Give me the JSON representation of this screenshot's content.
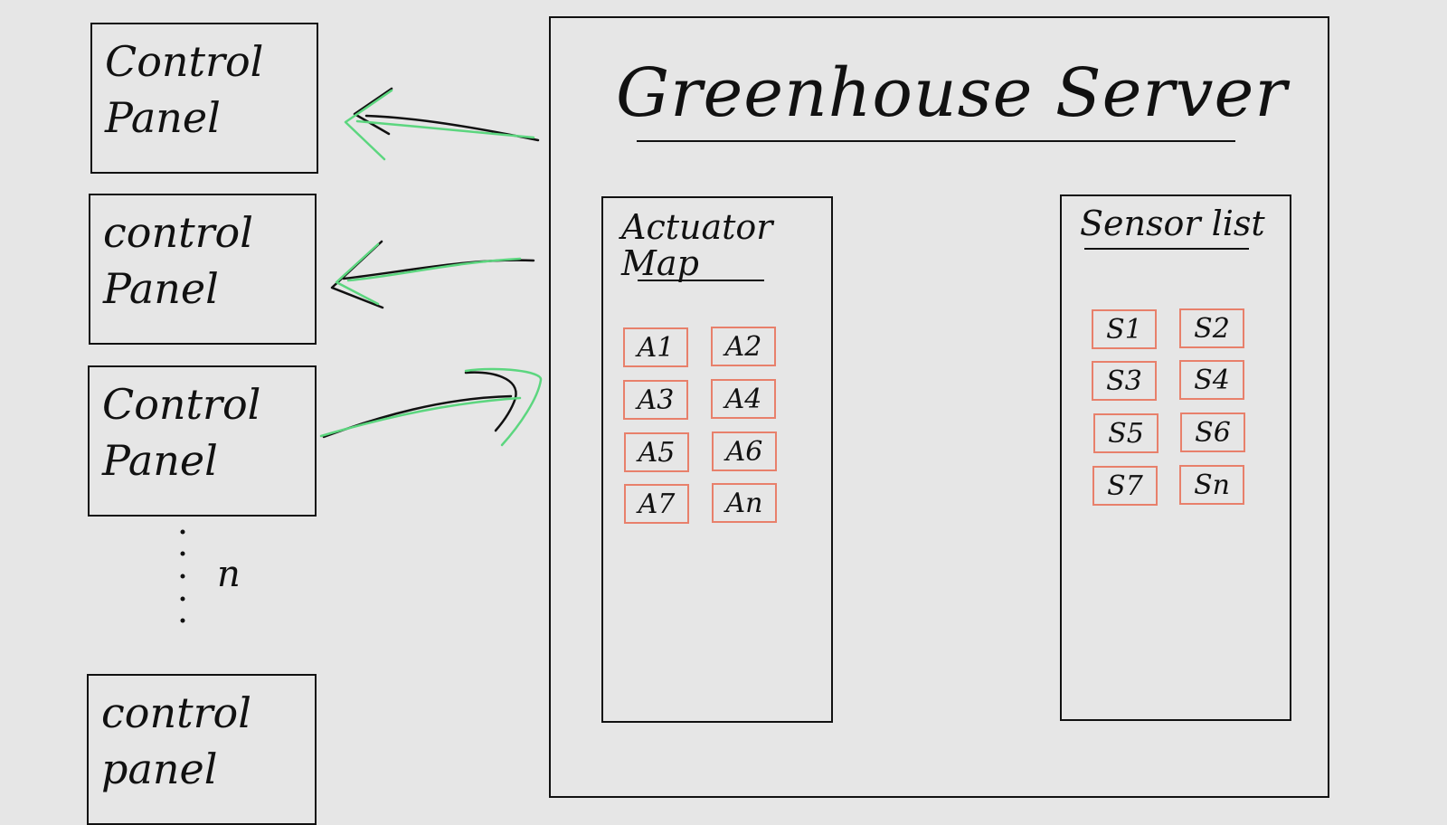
{
  "control_panels": [
    {
      "label": "Control\nPanel"
    },
    {
      "label": "control\nPanel"
    },
    {
      "label": "Control\nPanel"
    },
    {
      "label": "control\npanel"
    }
  ],
  "ellipsis_label": "n",
  "server": {
    "title": "Greenhouse Server",
    "actuator_map": {
      "title": "Actuator\nMap",
      "items": [
        "A1",
        "A2",
        "A3",
        "A4",
        "A5",
        "A6",
        "A7",
        "An"
      ]
    },
    "sensor_list": {
      "title": "Sensor list",
      "items": [
        "S1",
        "S2",
        "S3",
        "S4",
        "S5",
        "S6",
        "S7",
        "Sn"
      ]
    }
  },
  "colors": {
    "ink": "#111111",
    "arrow_highlight": "#5cd67f",
    "cell_border": "#e8806b",
    "background": "#e6e6e6"
  }
}
